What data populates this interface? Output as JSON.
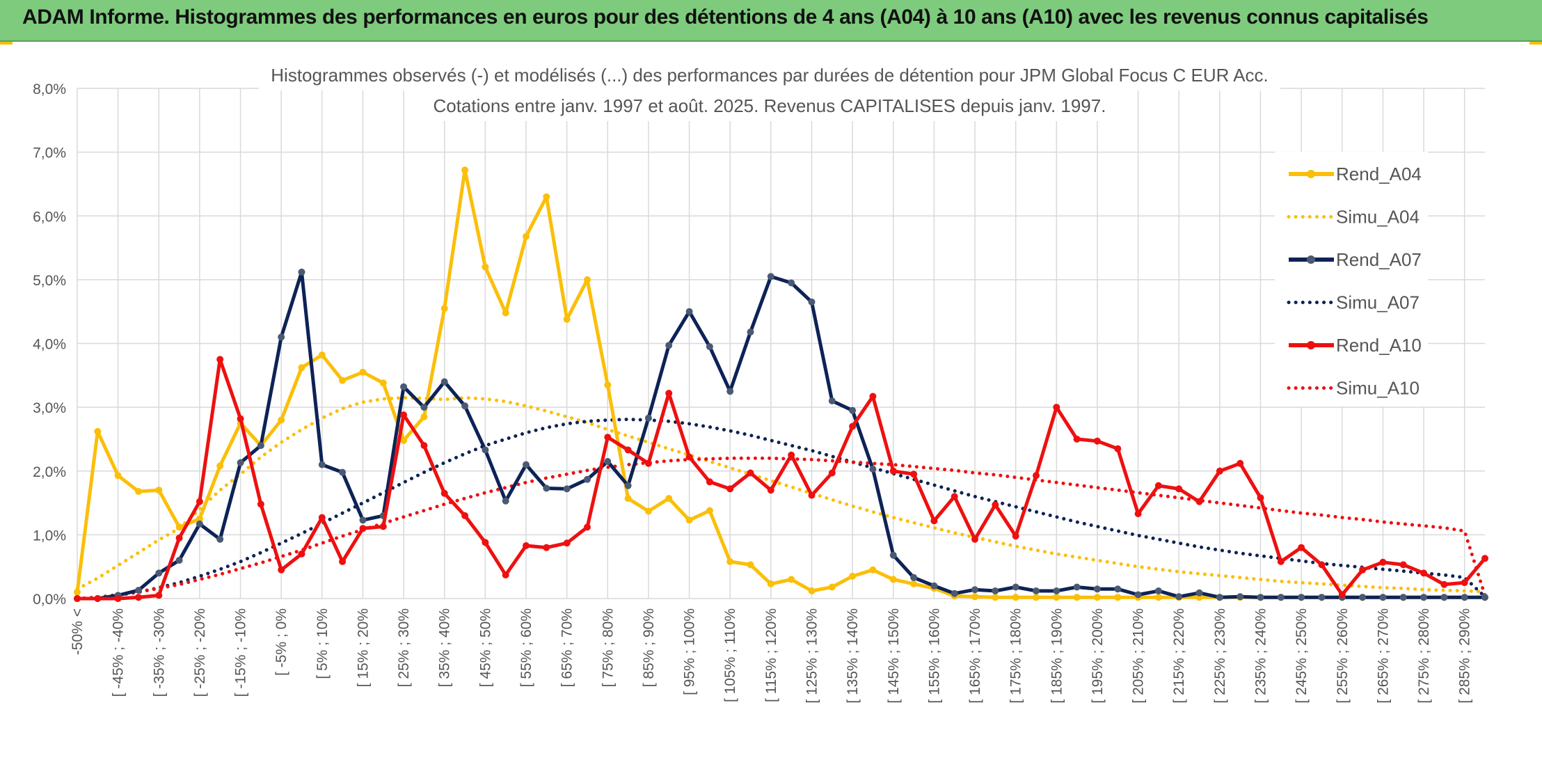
{
  "banner": {
    "title": "ADAM Informe. Histogrammes des performances en euros pour des détentions de 4 ans (A04) à 10 ans (A10) avec les revenus connus capitalisés"
  },
  "colors": {
    "banner_bg": "#7ecb7e",
    "A04": "#fbbf0a",
    "A07": "#0d2357",
    "A07_marker": "#4a5a72",
    "A10": "#ee1010",
    "grid": "#d9d9d9",
    "text": "#555555"
  },
  "chart_data": {
    "type": "line",
    "title": "Histogrammes observés (-) et modélisés (...) des performances par durées de détention pour JPM Global Focus C EUR Acc.",
    "subtitle": "Cotations entre janv. 1997 et août. 2025. Revenus CAPITALISES depuis janv. 1997.",
    "xlabel": "",
    "ylabel": "",
    "ylim": [
      0,
      8
    ],
    "yticks": [
      "0,0%",
      "1,0%",
      "2,0%",
      "3,0%",
      "4,0%",
      "5,0%",
      "6,0%",
      "7,0%",
      "8,0%"
    ],
    "grid": true,
    "legend_position": "right",
    "x_tick_labels": [
      "-50% <",
      "[ -45% ; -40%",
      "[ -35% ; -30%",
      "[ -25% ; -20%",
      "[ -15% ; -10%",
      "[ -5% ; 0%",
      "[ 5% ; 10%",
      "[ 15% ; 20%",
      "[ 25% ; 30%",
      "[ 35% ; 40%",
      "[ 45% ; 50%",
      "[ 55% ; 60%",
      "[ 65% ; 70%",
      "[ 75% ; 80%",
      "[ 85% ; 90%",
      "[ 95% ; 100%",
      "[ 105% ; 110%",
      "[ 115% ; 120%",
      "[ 125% ; 130%",
      "[ 135% ; 140%",
      "[ 145% ; 150%",
      "[ 155% ; 160%",
      "[ 165% ; 170%",
      "[ 175% ; 180%",
      "[ 185% ; 190%",
      "[ 195% ; 200%",
      "[ 205% ; 210%",
      "[ 215% ; 220%",
      "[ 225% ; 230%",
      "[ 235% ; 240%",
      "[ 245% ; 250%",
      "[ 255% ; 260%",
      "[ 265% ; 270%",
      "[ 275% ; 280%",
      "[ 285% ; 290%"
    ],
    "series": [
      {
        "name": "Rend_A04",
        "style": "solid",
        "color": "#fbbf0a",
        "values": [
          0.1,
          2.62,
          1.93,
          1.68,
          1.7,
          1.12,
          1.25,
          2.08,
          2.75,
          2.4,
          2.8,
          3.62,
          3.82,
          3.42,
          3.55,
          3.38,
          2.48,
          2.85,
          4.55,
          6.72,
          5.2,
          4.48,
          5.68,
          6.3,
          4.38,
          5.0,
          3.35,
          1.57,
          1.37,
          1.57,
          1.23,
          1.38,
          0.58,
          0.53,
          0.23,
          0.3,
          0.12,
          0.18,
          0.35,
          0.45,
          0.3,
          0.23,
          0.16,
          0.04,
          0.03,
          0.02,
          0.02,
          0.02,
          0.02,
          0.02,
          0.02,
          0.02,
          0.02,
          0.02,
          0.02,
          0.02,
          0.02,
          0.02,
          0.02,
          0.02,
          0.02,
          0.02,
          0.02,
          0.02,
          0.02,
          0.02,
          0.02,
          0.02,
          0.02,
          0.02
        ]
      },
      {
        "name": "Simu_A04",
        "style": "dotted",
        "color": "#fbbf0a",
        "values": [
          0.15,
          0.32,
          0.52,
          0.72,
          0.92,
          1.1,
          1.4,
          1.7,
          1.95,
          2.22,
          2.45,
          2.65,
          2.83,
          2.98,
          3.08,
          3.13,
          3.15,
          3.14,
          3.12,
          3.15,
          3.13,
          3.09,
          3.02,
          2.94,
          2.85,
          2.76,
          2.65,
          2.55,
          2.45,
          2.35,
          2.25,
          2.15,
          2.05,
          1.95,
          1.85,
          1.75,
          1.65,
          1.55,
          1.45,
          1.36,
          1.27,
          1.19,
          1.11,
          1.03,
          0.96,
          0.89,
          0.82,
          0.76,
          0.7,
          0.65,
          0.6,
          0.55,
          0.5,
          0.46,
          0.42,
          0.39,
          0.36,
          0.33,
          0.3,
          0.27,
          0.25,
          0.23,
          0.21,
          0.19,
          0.17,
          0.16,
          0.14,
          0.13,
          0.12,
          0.11
        ]
      },
      {
        "name": "Rend_A07",
        "style": "solid",
        "color": "#0d2357",
        "values": [
          0.0,
          0.0,
          0.05,
          0.13,
          0.4,
          0.6,
          1.17,
          0.93,
          2.13,
          2.4,
          4.1,
          5.12,
          2.1,
          1.98,
          1.23,
          1.3,
          3.32,
          3.0,
          3.4,
          3.02,
          2.33,
          1.53,
          2.1,
          1.73,
          1.72,
          1.87,
          2.15,
          1.77,
          2.83,
          3.97,
          4.5,
          3.95,
          3.25,
          4.18,
          5.05,
          4.95,
          4.65,
          3.1,
          2.95,
          2.03,
          0.68,
          0.33,
          0.2,
          0.08,
          0.14,
          0.12,
          0.18,
          0.12,
          0.12,
          0.18,
          0.15,
          0.15,
          0.06,
          0.12,
          0.03,
          0.09,
          0.02,
          0.03,
          0.02,
          0.02,
          0.02,
          0.02,
          0.02,
          0.02,
          0.02,
          0.02,
          0.02,
          0.02,
          0.02,
          0.02
        ]
      },
      {
        "name": "Simu_A07",
        "style": "dotted",
        "color": "#0d2357",
        "values": [
          0.0,
          0.02,
          0.06,
          0.1,
          0.17,
          0.25,
          0.35,
          0.46,
          0.58,
          0.72,
          0.87,
          1.02,
          1.18,
          1.34,
          1.5,
          1.66,
          1.82,
          1.98,
          2.13,
          2.27,
          2.4,
          2.5,
          2.6,
          2.68,
          2.74,
          2.78,
          2.8,
          2.81,
          2.8,
          2.78,
          2.74,
          2.69,
          2.63,
          2.56,
          2.48,
          2.4,
          2.32,
          2.23,
          2.14,
          2.05,
          1.96,
          1.87,
          1.78,
          1.69,
          1.6,
          1.52,
          1.44,
          1.36,
          1.28,
          1.2,
          1.13,
          1.06,
          0.99,
          0.93,
          0.87,
          0.81,
          0.76,
          0.71,
          0.67,
          0.63,
          0.59,
          0.55,
          0.52,
          0.49,
          0.46,
          0.43,
          0.4,
          0.37,
          0.33,
          0.03
        ]
      },
      {
        "name": "Rend_A10",
        "style": "solid",
        "color": "#ee1010",
        "values": [
          0.0,
          0.0,
          0.0,
          0.02,
          0.05,
          0.95,
          1.52,
          3.75,
          2.82,
          1.48,
          0.45,
          0.7,
          1.27,
          0.58,
          1.1,
          1.13,
          2.88,
          2.4,
          1.65,
          1.3,
          0.88,
          0.37,
          0.83,
          0.8,
          0.87,
          1.12,
          2.53,
          2.33,
          2.12,
          3.22,
          2.22,
          1.83,
          1.72,
          1.97,
          1.7,
          2.25,
          1.62,
          1.97,
          2.7,
          3.17,
          2.0,
          1.95,
          1.22,
          1.6,
          0.93,
          1.47,
          0.98,
          1.93,
          3.0,
          2.5,
          2.47,
          2.35,
          1.33,
          1.77,
          1.72,
          1.52,
          2.0,
          2.12,
          1.58,
          0.58,
          0.8,
          0.53,
          0.06,
          0.45,
          0.57,
          0.53,
          0.4,
          0.22,
          0.25,
          0.63
        ]
      },
      {
        "name": "Simu_A10",
        "style": "dotted",
        "color": "#ee1010",
        "values": [
          0.0,
          0.02,
          0.05,
          0.1,
          0.16,
          0.22,
          0.3,
          0.38,
          0.47,
          0.56,
          0.66,
          0.76,
          0.87,
          0.98,
          1.08,
          1.18,
          1.28,
          1.38,
          1.48,
          1.57,
          1.66,
          1.74,
          1.82,
          1.89,
          1.95,
          2.01,
          2.06,
          2.1,
          2.13,
          2.16,
          2.18,
          2.19,
          2.2,
          2.2,
          2.2,
          2.19,
          2.18,
          2.16,
          2.14,
          2.12,
          2.1,
          2.07,
          2.04,
          2.01,
          1.97,
          1.94,
          1.9,
          1.86,
          1.82,
          1.78,
          1.74,
          1.7,
          1.66,
          1.62,
          1.58,
          1.54,
          1.5,
          1.46,
          1.42,
          1.38,
          1.34,
          1.31,
          1.27,
          1.24,
          1.2,
          1.17,
          1.14,
          1.11,
          1.06,
          0.05
        ]
      }
    ]
  }
}
